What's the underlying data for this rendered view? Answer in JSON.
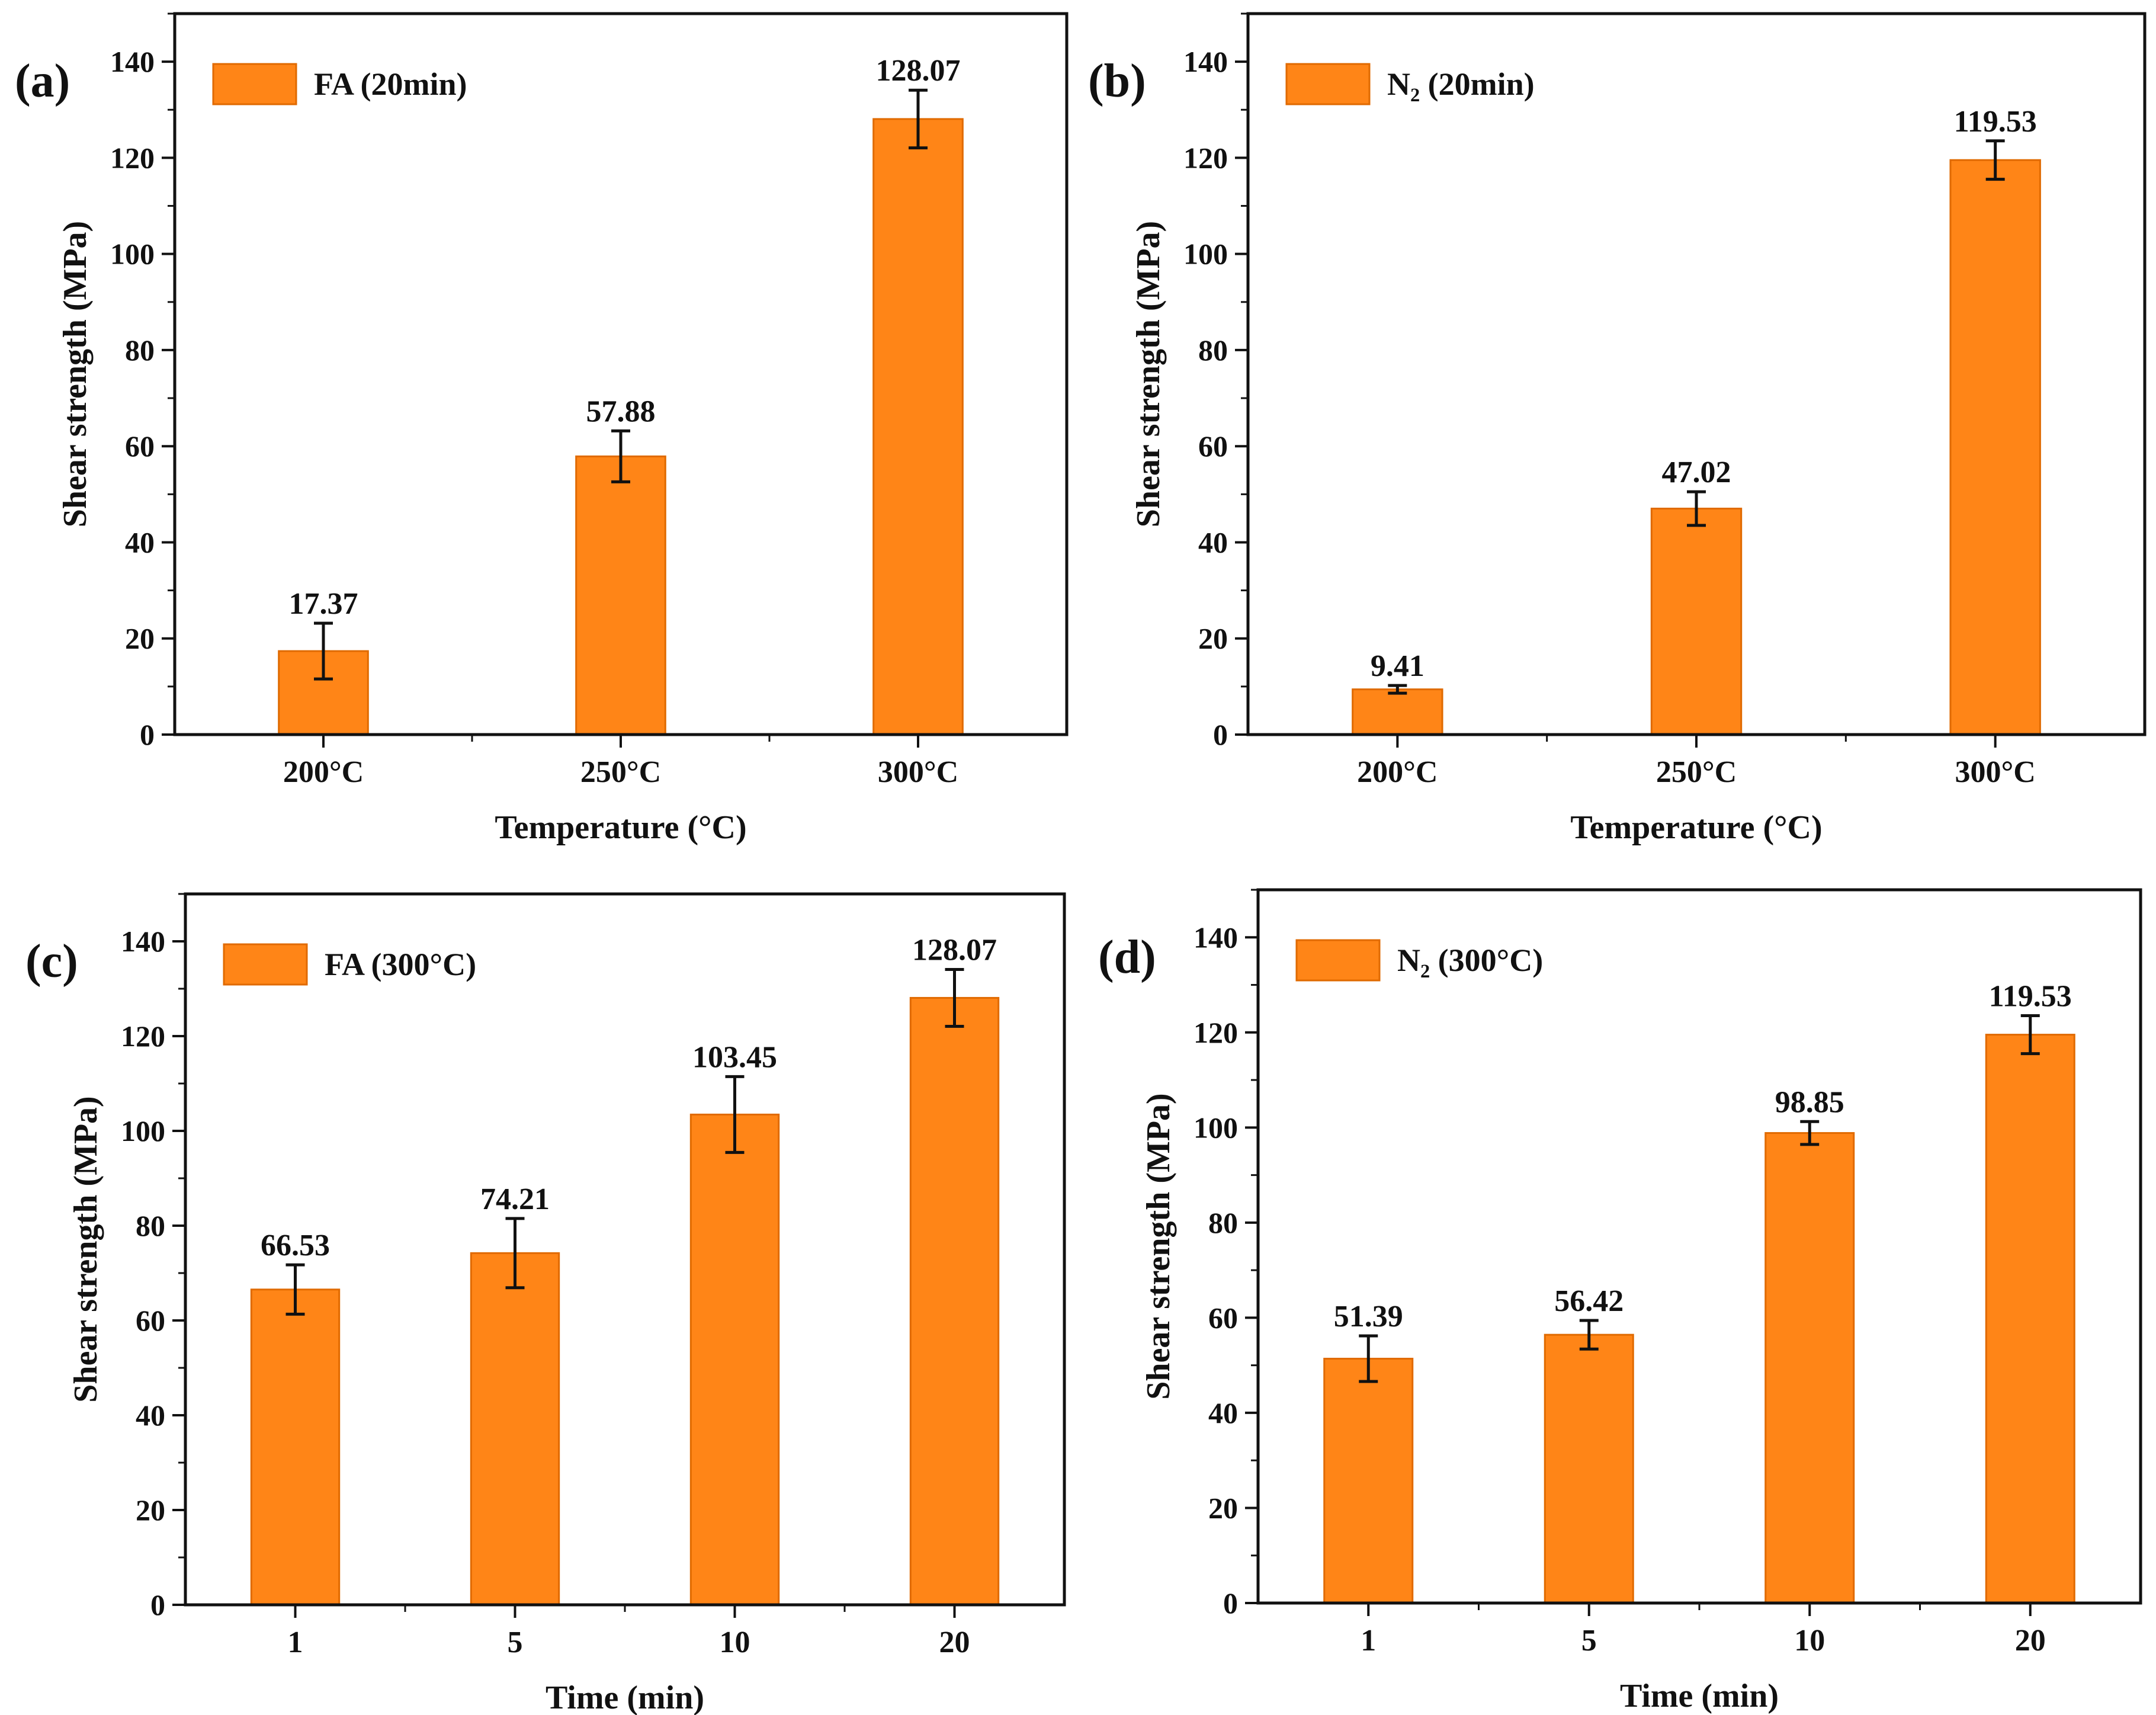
{
  "colors": {
    "bar": "#ff8517",
    "bar_edge": "#e06a00",
    "axis": "#111111"
  },
  "chart_data": [
    {
      "panel_label": "(a)",
      "type": "bar",
      "legend": "FA (20min)",
      "legend_placement": "top-left",
      "xlabel": "Temperature (°C)",
      "ylabel": "Shear strength (MPa)",
      "ylim": [
        0,
        150
      ],
      "yticks": [
        0,
        20,
        40,
        60,
        80,
        100,
        120,
        140
      ],
      "categories": [
        "200°C",
        "250°C",
        "300°C"
      ],
      "values": [
        17.37,
        57.88,
        128.07
      ],
      "errors": [
        5.8,
        5.3,
        6.0
      ],
      "data_labels": [
        "17.37",
        "57.88",
        "128.07"
      ]
    },
    {
      "panel_label": "(b)",
      "type": "bar",
      "legend": "N₂ (20min)",
      "legend_placement": "top-left",
      "xlabel": "Temperature (°C)",
      "ylabel": "Shear strength (MPa)",
      "ylim": [
        0,
        150
      ],
      "yticks": [
        0,
        20,
        40,
        60,
        80,
        100,
        120,
        140
      ],
      "categories": [
        "200°C",
        "250°C",
        "300°C"
      ],
      "values": [
        9.41,
        47.02,
        119.53
      ],
      "errors": [
        0.8,
        3.5,
        4.0
      ],
      "data_labels": [
        "9.41",
        "47.02",
        "119.53"
      ]
    },
    {
      "panel_label": "(c)",
      "type": "bar",
      "legend": "FA (300°C)",
      "legend_placement": "top-left",
      "xlabel": "Time (min)",
      "ylabel": "Shear strength (MPa)",
      "ylim": [
        0,
        150
      ],
      "yticks": [
        0,
        20,
        40,
        60,
        80,
        100,
        120,
        140
      ],
      "categories": [
        "1",
        "5",
        "10",
        "20"
      ],
      "values": [
        66.53,
        74.21,
        103.45,
        128.07
      ],
      "errors": [
        5.2,
        7.3,
        8.0,
        6.0
      ],
      "data_labels": [
        "66.53",
        "74.21",
        "103.45",
        "128.07"
      ]
    },
    {
      "panel_label": "(d)",
      "type": "bar",
      "legend": "N₂ (300°C)",
      "legend_placement": "top-left",
      "xlabel": "Time (min)",
      "ylabel": "Shear strength (MPa)",
      "ylim": [
        0,
        150
      ],
      "yticks": [
        0,
        20,
        40,
        60,
        80,
        100,
        120,
        140
      ],
      "categories": [
        "1",
        "5",
        "10",
        "20"
      ],
      "values": [
        51.39,
        56.42,
        98.85,
        119.53
      ],
      "errors": [
        4.8,
        3.0,
        2.4,
        4.0
      ],
      "data_labels": [
        "51.39",
        "56.42",
        "98.85",
        "119.53"
      ]
    }
  ]
}
